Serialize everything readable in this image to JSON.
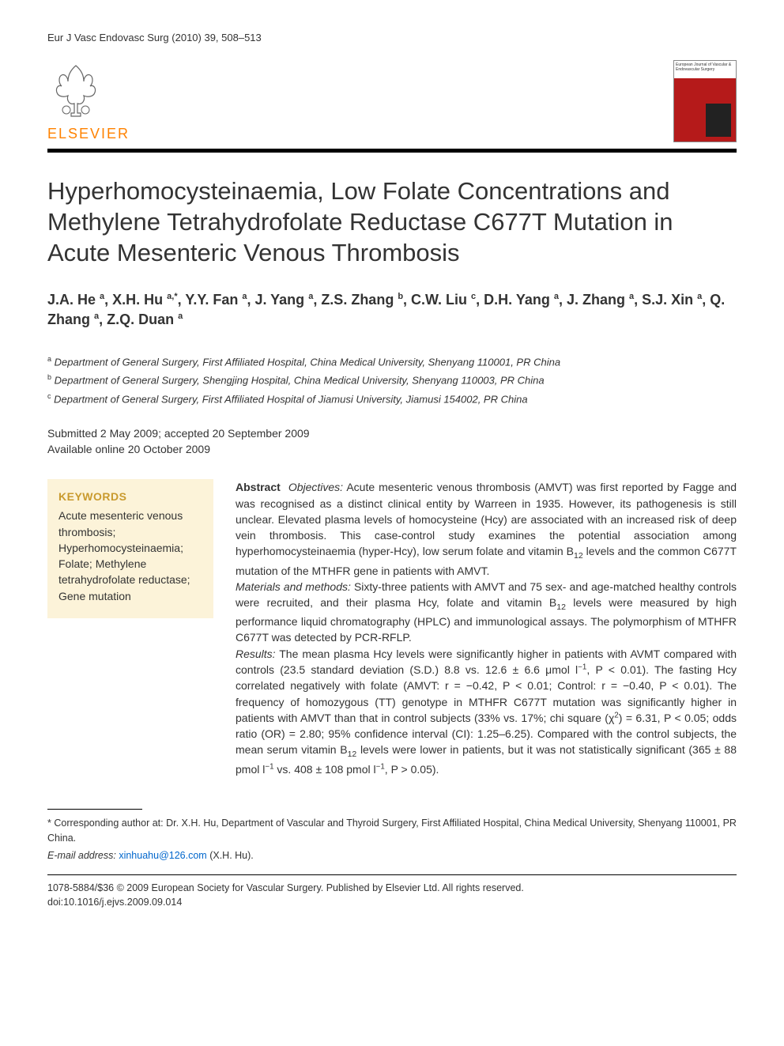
{
  "citation": "Eur J Vasc Endovasc Surg (2010) 39, 508–513",
  "publisher": {
    "name": "ELSEVIER",
    "logo_color": "#ff8200",
    "tree_color": "#666666"
  },
  "journal_cover": {
    "title_text": "European Journal of Vascular & Endovascular Surgery",
    "bg_color": "#b51a1a"
  },
  "title": "Hyperhomocysteinaemia, Low Folate Concentrations and Methylene Tetrahydrofolate Reductase C677T Mutation in Acute Mesenteric Venous Thrombosis",
  "authors_html": "J.A. He <sup>a</sup>, X.H. Hu <sup>a,*</sup>, Y.Y. Fan <sup>a</sup>, J. Yang <sup>a</sup>, Z.S. Zhang <sup>b</sup>, C.W. Liu <sup>c</sup>, D.H. Yang <sup>a</sup>, J. Zhang <sup>a</sup>, S.J. Xin <sup>a</sup>, Q. Zhang <sup>a</sup>, Z.Q. Duan <sup>a</sup>",
  "affiliations": [
    {
      "mark": "a",
      "text": "Department of General Surgery, First Affiliated Hospital, China Medical University, Shenyang 110001, PR China"
    },
    {
      "mark": "b",
      "text": "Department of General Surgery, Shengjing Hospital, China Medical University, Shenyang 110003, PR China"
    },
    {
      "mark": "c",
      "text": "Department of General Surgery, First Affiliated Hospital of Jiamusi University, Jiamusi 154002, PR China"
    }
  ],
  "dates": {
    "submitted_accepted": "Submitted 2 May 2009; accepted 20 September 2009",
    "online": "Available online 20 October 2009"
  },
  "keywords": {
    "heading": "KEYWORDS",
    "items": "Acute mesenteric venous thrombosis; Hyperhomocysteinaemia; Folate; Methylene tetrahydrofolate reductase; Gene mutation",
    "heading_color": "#c99a2e",
    "bg_color": "#fcf3d9"
  },
  "abstract": {
    "label": "Abstract",
    "sections": [
      {
        "heading": "Objectives:",
        "text": "Acute mesenteric venous thrombosis (AMVT) was first reported by Fagge and was recognised as a distinct clinical entity by Warreen in 1935. However, its pathogenesis is still unclear. Elevated plasma levels of homocysteine (Hcy) are associated with an increased risk of deep vein thrombosis. This case-control study examines the potential association among hyperhomocysteinaemia (hyper-Hcy), low serum folate and vitamin B₁₂ levels and the common C677T mutation of the MTHFR gene in patients with AMVT."
      },
      {
        "heading": "Materials and methods:",
        "text": "Sixty-three patients with AMVT and 75 sex- and age-matched healthy controls were recruited, and their plasma Hcy, folate and vitamin B₁₂ levels were measured by high performance liquid chromatography (HPLC) and immunological assays. The polymorphism of MTHFR C677T was detected by PCR-RFLP."
      },
      {
        "heading": "Results:",
        "text": "The mean plasma Hcy levels were significantly higher in patients with AVMT compared with controls (23.5 standard deviation (S.D.) 8.8 vs. 12.6 ± 6.6 μmol l⁻¹, P < 0.01). The fasting Hcy correlated negatively with folate (AMVT: r = −0.42, P < 0.01; Control: r = −0.40, P < 0.01). The frequency of homozygous (TT) genotype in MTHFR C677T mutation was significantly higher in patients with AMVT than that in control subjects (33% vs. 17%; chi square (χ²) = 6.31, P < 0.05; odds ratio (OR) = 2.80; 95% confidence interval (CI): 1.25–6.25). Compared with the control subjects, the mean serum vitamin B₁₂ levels were lower in patients, but it was not statistically significant (365 ± 88 pmol l⁻¹ vs. 408 ± 108 pmol l⁻¹, P > 0.05)."
      }
    ]
  },
  "footnotes": {
    "corresponding": "* Corresponding author at: Dr. X.H. Hu, Department of Vascular and Thyroid Surgery, First Affiliated Hospital, China Medical University, Shenyang 110001, PR China.",
    "email_label": "E-mail address:",
    "email": "xinhuahu@126.com",
    "email_suffix": "(X.H. Hu)."
  },
  "copyright": {
    "line1": "1078-5884/$36 © 2009 European Society for Vascular Surgery. Published by Elsevier Ltd. All rights reserved.",
    "doi": "doi:10.1016/j.ejvs.2009.09.014"
  },
  "colors": {
    "text": "#333333",
    "link": "#0066cc",
    "rule": "#000000",
    "bg": "#ffffff"
  },
  "typography": {
    "title_fontsize": 31,
    "authors_fontsize": 18,
    "body_fontsize": 14,
    "footnote_fontsize": 12.5
  }
}
